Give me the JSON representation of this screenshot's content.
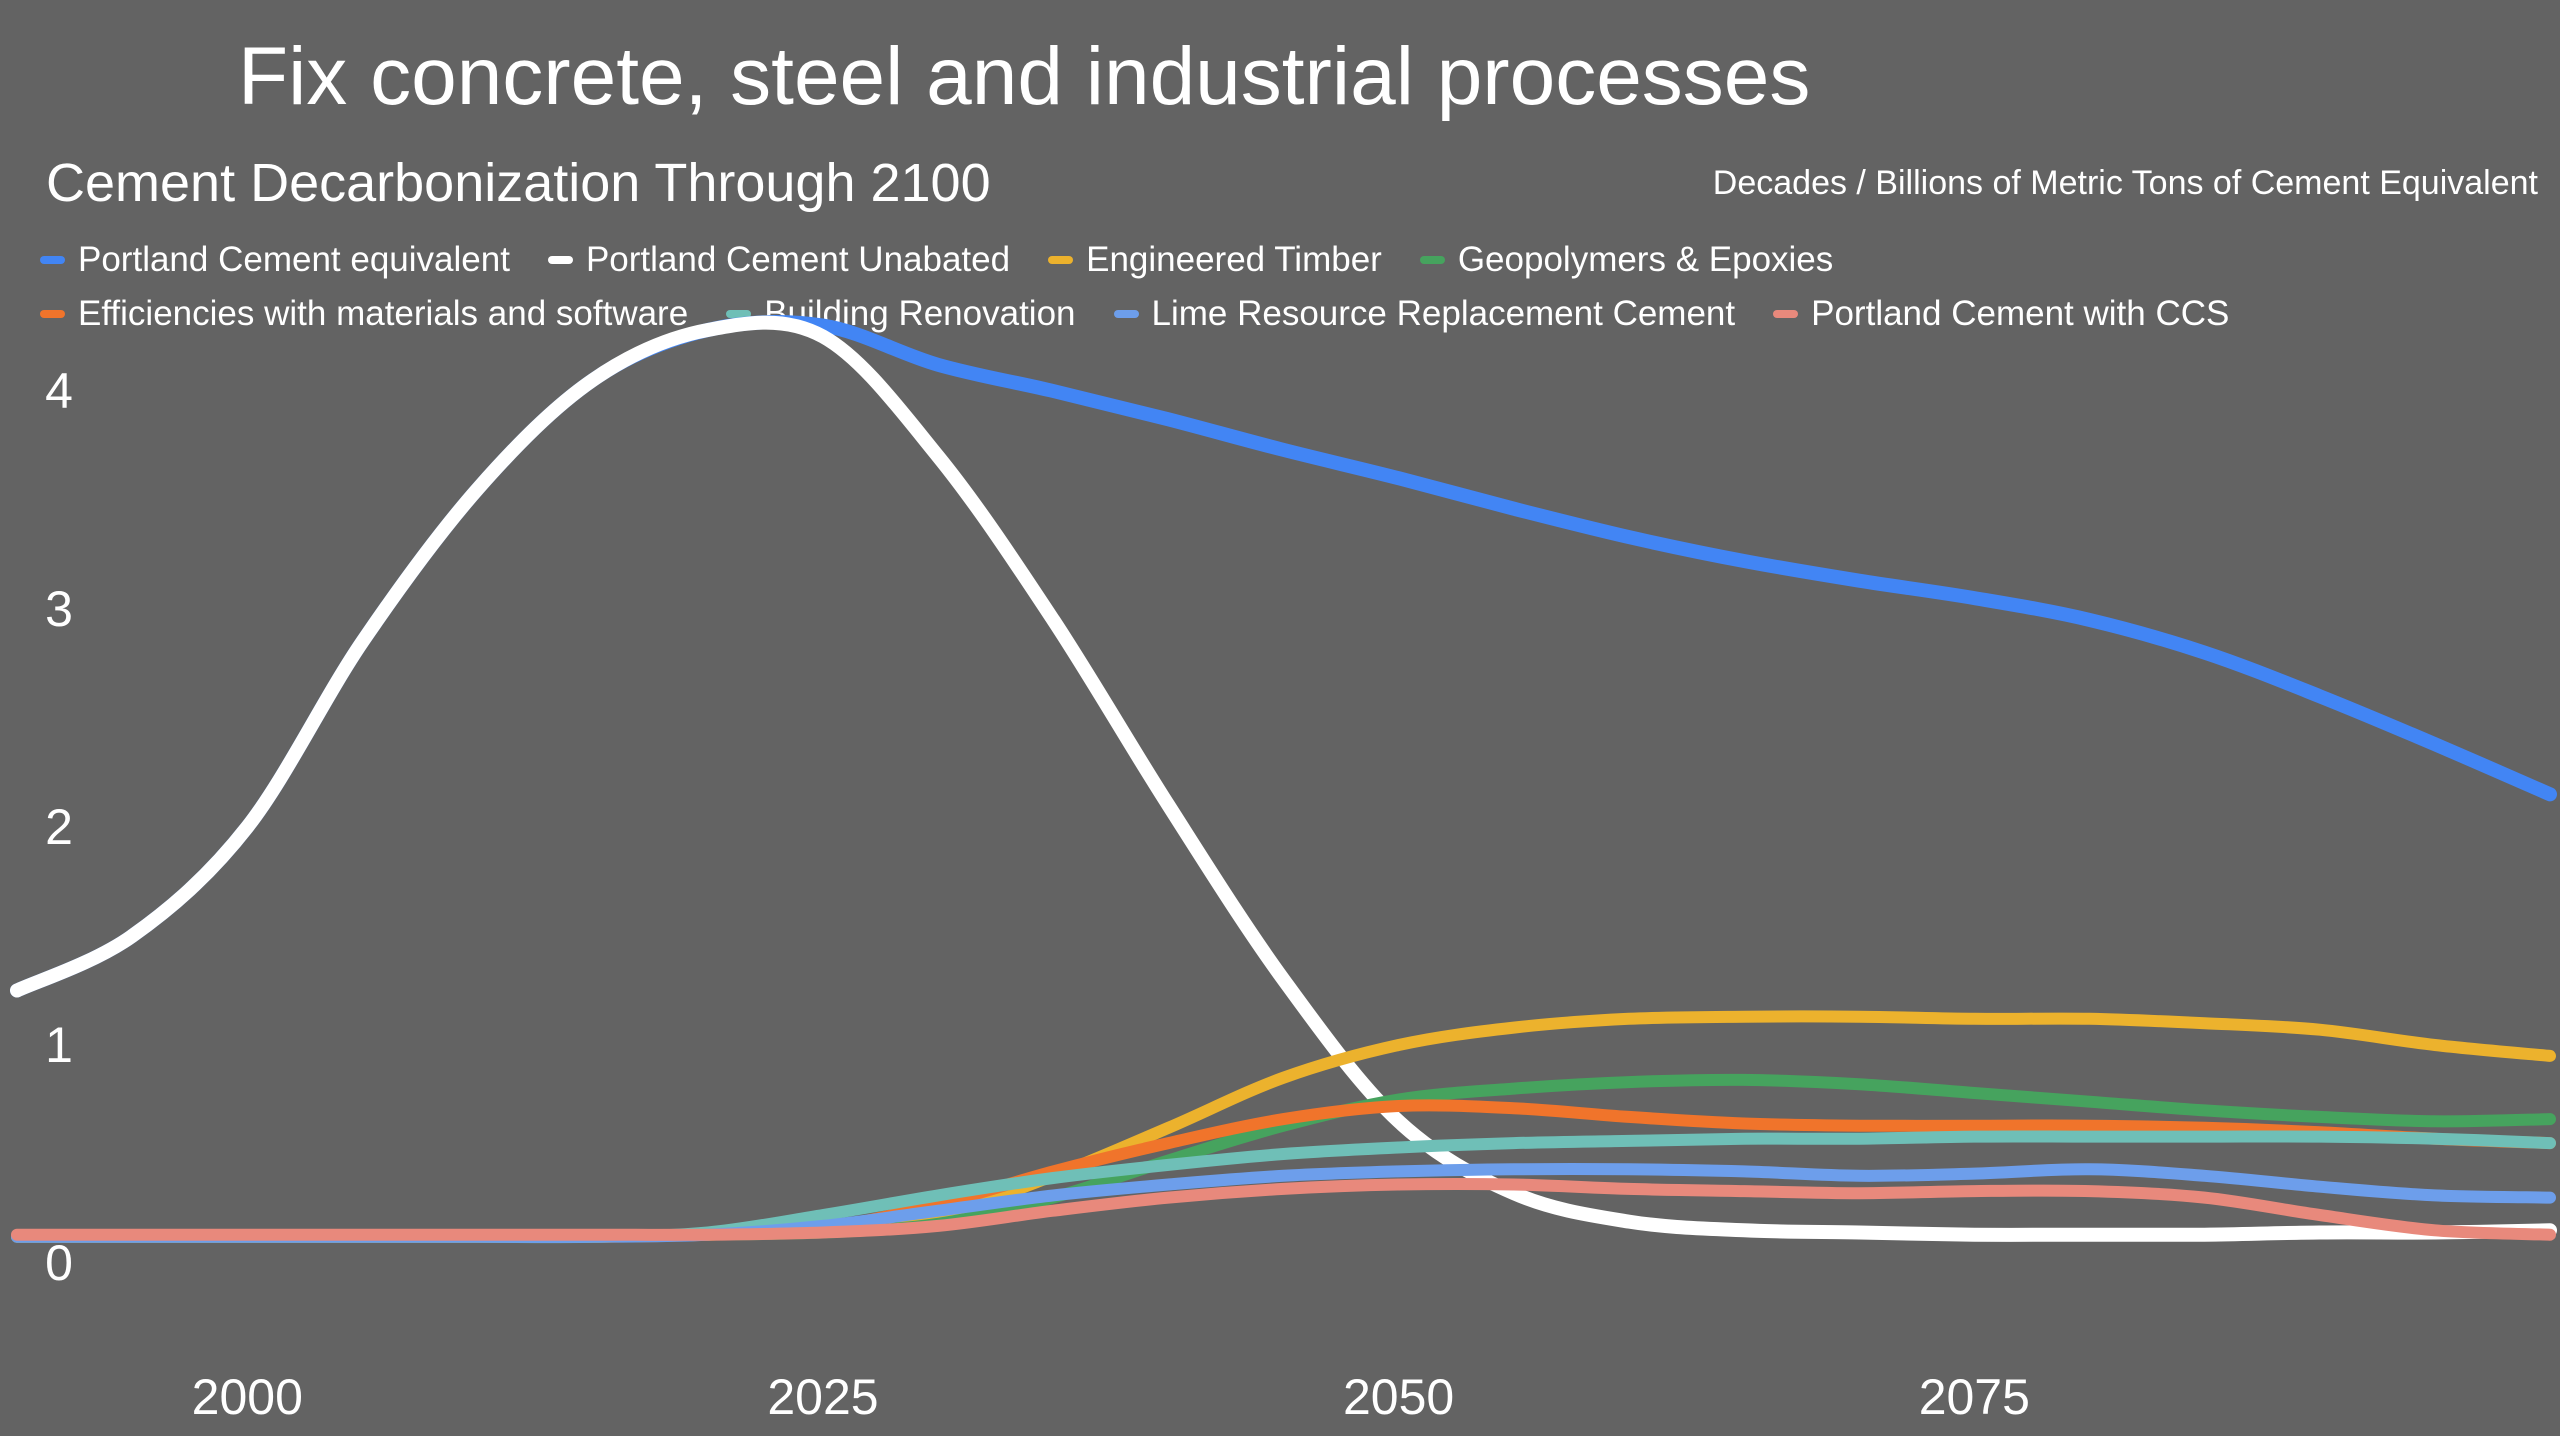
{
  "page": {
    "background_color": "#636363",
    "title": "Fix concrete, steel and industrial processes"
  },
  "header": {
    "chart_title": "Cement Decarbonization Through 2100",
    "units_label": "Decades / Billions of Metric Tons of Cement Equivalent"
  },
  "chart_data": {
    "type": "line",
    "title": "Cement Decarbonization Through 2100",
    "x_unit": "year",
    "y_unit": "billions of metric tons of cement equivalent",
    "xlim": [
      1990,
      2100
    ],
    "ylim": [
      0,
      4.6
    ],
    "xticks": [
      2000,
      2025,
      2050,
      2075
    ],
    "yticks": [
      0,
      1,
      2,
      3,
      4
    ],
    "grid": false,
    "legend_position": "top-left",
    "x": [
      1990,
      1995,
      2000,
      2005,
      2010,
      2015,
      2020,
      2025,
      2030,
      2035,
      2040,
      2045,
      2050,
      2055,
      2060,
      2065,
      2070,
      2075,
      2080,
      2085,
      2090,
      2095,
      2100
    ],
    "series": [
      {
        "name": "Portland Cement equivalent",
        "color": "#4285F4",
        "values": [
          1.25,
          1.5,
          2.0,
          2.85,
          3.55,
          4.05,
          4.28,
          4.3,
          4.12,
          4.0,
          3.87,
          3.73,
          3.6,
          3.46,
          3.33,
          3.22,
          3.13,
          3.05,
          2.95,
          2.8,
          2.6,
          2.38,
          2.15
        ]
      },
      {
        "name": "Portland Cement Unabated",
        "color": "#FFFFFF",
        "values": [
          1.25,
          1.5,
          2.0,
          2.85,
          3.55,
          4.05,
          4.28,
          4.25,
          3.7,
          2.95,
          2.1,
          1.3,
          0.65,
          0.32,
          0.19,
          0.15,
          0.14,
          0.13,
          0.13,
          0.13,
          0.14,
          0.14,
          0.15
        ]
      },
      {
        "name": "Engineered Timber",
        "color": "#ECB22D",
        "values": [
          0.12,
          0.12,
          0.12,
          0.12,
          0.12,
          0.12,
          0.13,
          0.15,
          0.22,
          0.4,
          0.62,
          0.85,
          1.0,
          1.08,
          1.12,
          1.13,
          1.13,
          1.12,
          1.12,
          1.1,
          1.07,
          1.0,
          0.95
        ]
      },
      {
        "name": "Geopolymers & Epoxies",
        "color": "#46A35E",
        "values": [
          0.12,
          0.12,
          0.12,
          0.12,
          0.12,
          0.12,
          0.13,
          0.14,
          0.18,
          0.3,
          0.47,
          0.63,
          0.75,
          0.8,
          0.83,
          0.84,
          0.82,
          0.78,
          0.74,
          0.7,
          0.67,
          0.65,
          0.66
        ]
      },
      {
        "name": "Efficiencies with materials and software",
        "color": "#F0742B",
        "values": [
          0.12,
          0.12,
          0.12,
          0.12,
          0.12,
          0.12,
          0.13,
          0.16,
          0.27,
          0.42,
          0.55,
          0.66,
          0.72,
          0.71,
          0.67,
          0.64,
          0.63,
          0.63,
          0.63,
          0.62,
          0.6,
          0.57,
          0.55
        ]
      },
      {
        "name": "Building Renovation",
        "color": "#6FBFB7",
        "values": [
          0.12,
          0.12,
          0.12,
          0.12,
          0.12,
          0.12,
          0.14,
          0.22,
          0.31,
          0.39,
          0.45,
          0.5,
          0.53,
          0.55,
          0.56,
          0.57,
          0.57,
          0.58,
          0.58,
          0.58,
          0.58,
          0.57,
          0.55
        ]
      },
      {
        "name": "Lime Resource Replacement Cement",
        "color": "#6D9EEB",
        "values": [
          0.12,
          0.12,
          0.12,
          0.12,
          0.12,
          0.12,
          0.13,
          0.17,
          0.24,
          0.31,
          0.36,
          0.4,
          0.42,
          0.43,
          0.43,
          0.42,
          0.4,
          0.41,
          0.43,
          0.4,
          0.35,
          0.31,
          0.3
        ]
      },
      {
        "name": "Portland Cement with CCS",
        "color": "#E8897C",
        "values": [
          0.13,
          0.13,
          0.13,
          0.13,
          0.13,
          0.13,
          0.13,
          0.14,
          0.17,
          0.24,
          0.3,
          0.34,
          0.36,
          0.36,
          0.34,
          0.33,
          0.32,
          0.33,
          0.33,
          0.3,
          0.22,
          0.15,
          0.13
        ]
      }
    ]
  }
}
